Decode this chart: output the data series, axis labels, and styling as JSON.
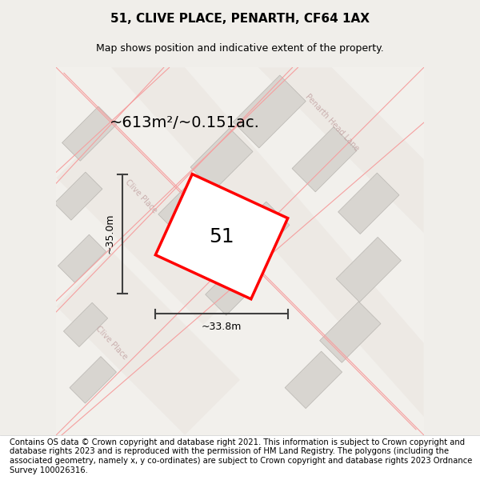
{
  "title": "51, CLIVE PLACE, PENARTH, CF64 1AX",
  "subtitle": "Map shows position and indicative extent of the property.",
  "area_text": "~613m²/~0.151ac.",
  "number_label": "51",
  "width_label": "~33.8m",
  "height_label": "~35.0m",
  "footer_text": "Contains OS data © Crown copyright and database right 2021. This information is subject to Crown copyright and database rights 2023 and is reproduced with the permission of HM Land Registry. The polygons (including the associated geometry, namely x, y co-ordinates) are subject to Crown copyright and database rights 2023 Ordnance Survey 100026316.",
  "bg_color": "#f0eeea",
  "map_bg": "#f7f6f4",
  "plot_color": "#ffffff",
  "red_color": "#ff0000",
  "gray_building": "#d8d5d0",
  "road_color": "#ffffff",
  "road_line_color": "#f0a0a0",
  "dim_line_color": "#404040",
  "street_label_color": "#b0b0b0",
  "road_label_color": "#c08080",
  "title_fontsize": 11,
  "subtitle_fontsize": 9,
  "area_fontsize": 14,
  "number_fontsize": 18,
  "dim_fontsize": 9,
  "footer_fontsize": 7.2
}
